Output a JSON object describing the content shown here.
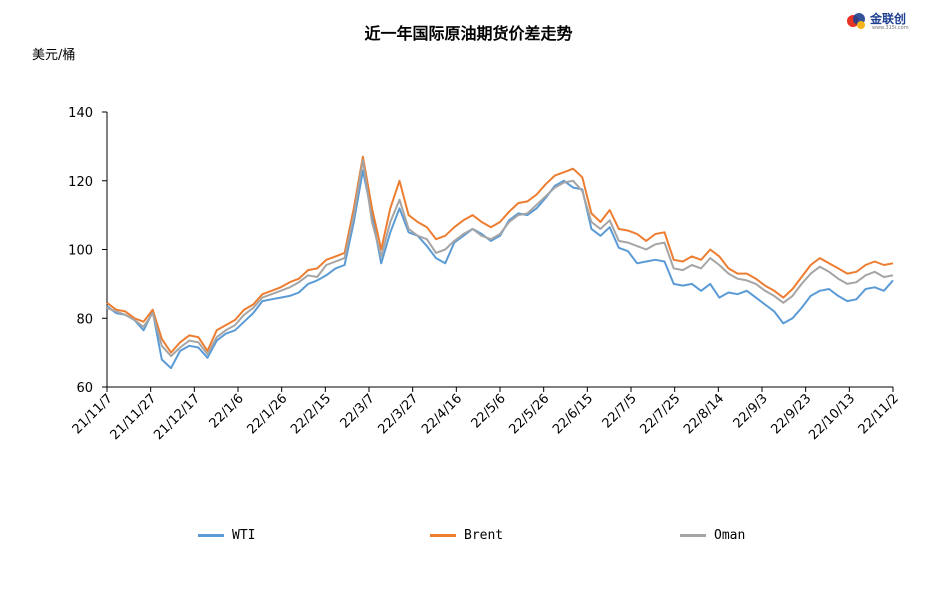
{
  "chart_data": {
    "type": "line",
    "title": "近一年国际原油期货价差走势",
    "ylabel": "美元/桶",
    "ylim": [
      60,
      140
    ],
    "yticks": [
      60,
      80,
      100,
      120,
      140
    ],
    "x_labels": [
      "21/11/7",
      "21/11/27",
      "21/12/17",
      "22/1/6",
      "22/1/26",
      "22/2/15",
      "22/3/7",
      "22/3/27",
      "22/4/16",
      "22/5/6",
      "22/5/26",
      "22/6/15",
      "22/7/5",
      "22/7/25",
      "22/8/14",
      "22/9/3",
      "22/9/23",
      "22/10/13",
      "22/11/2"
    ],
    "series": [
      {
        "name": "WTI",
        "color": "#5b9bd5",
        "values": [
          83.5,
          81.5,
          81.0,
          79.5,
          76.5,
          82.0,
          68.0,
          65.5,
          70.5,
          72.0,
          71.5,
          68.5,
          73.5,
          75.5,
          76.5,
          79.0,
          81.5,
          85.0,
          85.5,
          86.0,
          86.5,
          87.5,
          90.0,
          91.0,
          92.5,
          94.5,
          95.5,
          108.0,
          123.0,
          110.0,
          96.0,
          105.0,
          112.0,
          105.0,
          104.0,
          101.0,
          97.5,
          96.0,
          102.0,
          104.0,
          106.0,
          104.5,
          102.5,
          104.0,
          108.5,
          110.5,
          110.0,
          112.0,
          115.0,
          118.5,
          120.0,
          118.0,
          117.5,
          106.0,
          104.0,
          106.5,
          100.5,
          99.5,
          96.0,
          96.5,
          97.0,
          96.5,
          90.0,
          89.5,
          90.0,
          88.0,
          90.0,
          86.0,
          87.5,
          87.0,
          88.0,
          86.0,
          84.0,
          82.0,
          78.5,
          80.0,
          83.0,
          86.5,
          88.0,
          88.5,
          86.5,
          85.0,
          85.5,
          88.5,
          89.0,
          88.0,
          91.0
        ]
      },
      {
        "name": "Brent",
        "color": "#ed7d31",
        "values": [
          84.5,
          82.5,
          82.0,
          80.0,
          79.0,
          82.5,
          74.0,
          70.0,
          73.0,
          75.0,
          74.5,
          70.5,
          76.5,
          78.0,
          79.5,
          82.5,
          84.0,
          87.0,
          88.0,
          89.0,
          90.5,
          91.5,
          94.0,
          94.5,
          97.0,
          98.0,
          99.0,
          112.0,
          127.0,
          112.0,
          100.0,
          112.0,
          120.0,
          110.0,
          108.0,
          106.5,
          103.0,
          104.0,
          106.5,
          108.5,
          110.0,
          108.0,
          106.5,
          108.0,
          111.0,
          113.5,
          114.0,
          116.0,
          119.0,
          121.5,
          122.5,
          123.5,
          121.0,
          110.5,
          108.0,
          111.5,
          106.0,
          105.5,
          104.5,
          102.5,
          104.5,
          105.0,
          97.0,
          96.5,
          98.0,
          97.0,
          100.0,
          98.0,
          94.5,
          93.0,
          93.0,
          91.5,
          89.5,
          88.0,
          86.0,
          88.5,
          92.0,
          95.5,
          97.5,
          96.0,
          94.5,
          93.0,
          93.5,
          95.5,
          96.5,
          95.5,
          96.0
        ]
      },
      {
        "name": "Oman",
        "color": "#a5a5a5",
        "values": [
          83.0,
          82.0,
          81.0,
          79.5,
          77.5,
          81.5,
          72.0,
          69.0,
          71.5,
          73.5,
          73.0,
          69.5,
          74.5,
          76.5,
          78.0,
          81.0,
          83.0,
          86.0,
          87.0,
          88.0,
          89.0,
          90.5,
          92.5,
          92.0,
          95.5,
          96.5,
          97.5,
          110.0,
          126.0,
          108.0,
          98.0,
          108.0,
          114.5,
          106.0,
          104.0,
          103.0,
          99.0,
          100.0,
          102.5,
          104.5,
          106.0,
          104.0,
          103.0,
          104.5,
          108.0,
          110.0,
          110.5,
          113.0,
          115.5,
          118.0,
          119.5,
          120.0,
          117.0,
          108.0,
          106.0,
          108.5,
          102.5,
          102.0,
          101.0,
          100.0,
          101.5,
          102.0,
          94.5,
          94.0,
          95.5,
          94.5,
          97.5,
          95.5,
          93.0,
          91.5,
          91.0,
          90.0,
          88.0,
          86.5,
          84.5,
          86.5,
          90.0,
          93.0,
          95.0,
          93.5,
          91.5,
          90.0,
          90.5,
          92.5,
          93.5,
          92.0,
          92.5
        ]
      }
    ],
    "legend_position": "bottom"
  },
  "logo": {
    "text": "金联创",
    "sub": "www.315i.com"
  }
}
